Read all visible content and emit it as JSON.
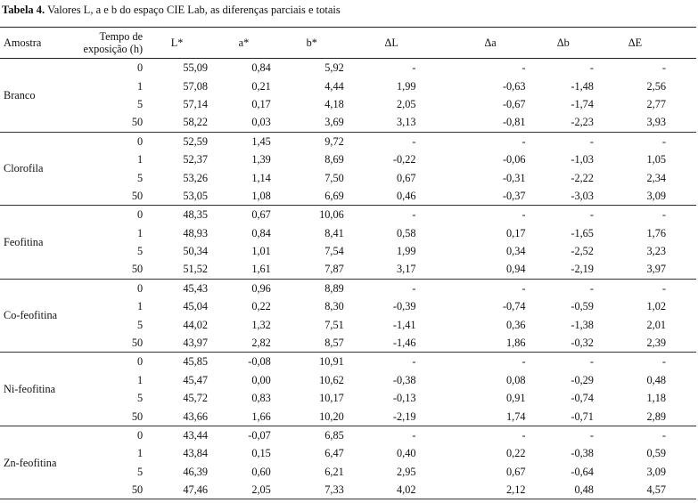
{
  "caption": {
    "label": "Tabela 4.",
    "text": " Valores L, a e b do espaço CIE Lab, as diferenças parciais e totais"
  },
  "headers": {
    "amostra": "Amostra",
    "tempo_line1": "Tempo de",
    "tempo_line2": "exposição (h)",
    "L": "L*",
    "a": "a*",
    "b": "b*",
    "dL": "ΔL",
    "da": "Δa",
    "db": "Δb",
    "dE": "ΔE"
  },
  "groups": [
    {
      "name": "Branco",
      "rows": [
        [
          "0",
          "55,09",
          "0,84",
          "5,92",
          "-",
          "-",
          "-",
          "-"
        ],
        [
          "1",
          "57,08",
          "0,21",
          "4,44",
          "1,99",
          "-0,63",
          "-1,48",
          "2,56"
        ],
        [
          "5",
          "57,14",
          "0,17",
          "4,18",
          "2,05",
          "-0,67",
          "-1,74",
          "2,77"
        ],
        [
          "50",
          "58,22",
          "0,03",
          "3,69",
          "3,13",
          "-0,81",
          "-2,23",
          "3,93"
        ]
      ]
    },
    {
      "name": "Clorofila",
      "rows": [
        [
          "0",
          "52,59",
          "1,45",
          "9,72",
          "-",
          "-",
          "-",
          "-"
        ],
        [
          "1",
          "52,37",
          "1,39",
          "8,69",
          "-0,22",
          "-0,06",
          "-1,03",
          "1,05"
        ],
        [
          "5",
          "53,26",
          "1,14",
          "7,50",
          "0,67",
          "-0,31",
          "-2,22",
          "2,34"
        ],
        [
          "50",
          "53,05",
          "1,08",
          "6,69",
          "0,46",
          "-0,37",
          "-3,03",
          "3,09"
        ]
      ]
    },
    {
      "name": "Feofitina",
      "rows": [
        [
          "0",
          "48,35",
          "0,67",
          "10,06",
          "-",
          "-",
          "-",
          "-"
        ],
        [
          "1",
          "48,93",
          "0,84",
          "8,41",
          "0,58",
          "0,17",
          "-1,65",
          "1,76"
        ],
        [
          "5",
          "50,34",
          "1,01",
          "7,54",
          "1,99",
          "0,34",
          "-2,52",
          "3,23"
        ],
        [
          "50",
          "51,52",
          "1,61",
          "7,87",
          "3,17",
          "0,94",
          "-2,19",
          "3,97"
        ]
      ]
    },
    {
      "name": "Co-feofitina",
      "rows": [
        [
          "0",
          "45,43",
          "0,96",
          "8,89",
          "-",
          "-",
          "-",
          "-"
        ],
        [
          "1",
          "45,04",
          "0,22",
          "8,30",
          "-0,39",
          "-0,74",
          "-0,59",
          "1,02"
        ],
        [
          "5",
          "44,02",
          "1,32",
          "7,51",
          "-1,41",
          "0,36",
          "-1,38",
          "2,01"
        ],
        [
          "50",
          "43,97",
          "2,82",
          "8,57",
          "-1,46",
          "1,86",
          "-0,32",
          "2,39"
        ]
      ]
    },
    {
      "name": "Ni-feofitina",
      "rows": [
        [
          "0",
          "45,85",
          "-0,08",
          "10,91",
          "-",
          "-",
          "-",
          "-"
        ],
        [
          "1",
          "45,47",
          "0,00",
          "10,62",
          "-0,38",
          "0,08",
          "-0,29",
          "0,48"
        ],
        [
          "5",
          "45,72",
          "0,83",
          "10,17",
          "-0,13",
          "0,91",
          "-0,74",
          "1,18"
        ],
        [
          "50",
          "43,66",
          "1,66",
          "10,20",
          "-2,19",
          "1,74",
          "-0,71",
          "2,89"
        ]
      ]
    },
    {
      "name": "Zn-feofitina",
      "rows": [
        [
          "0",
          "43,44",
          "-0,07",
          "6,85",
          "-",
          "-",
          "-",
          "-"
        ],
        [
          "1",
          "43,84",
          "0,15",
          "6,47",
          "0,40",
          "0,22",
          "-0,38",
          "0,59"
        ],
        [
          "5",
          "46,39",
          "0,60",
          "6,21",
          "2,95",
          "0,67",
          "-0,64",
          "3,09"
        ],
        [
          "50",
          "47,46",
          "2,05",
          "7,33",
          "4,02",
          "2,12",
          "0,48",
          "4,57"
        ]
      ]
    }
  ]
}
